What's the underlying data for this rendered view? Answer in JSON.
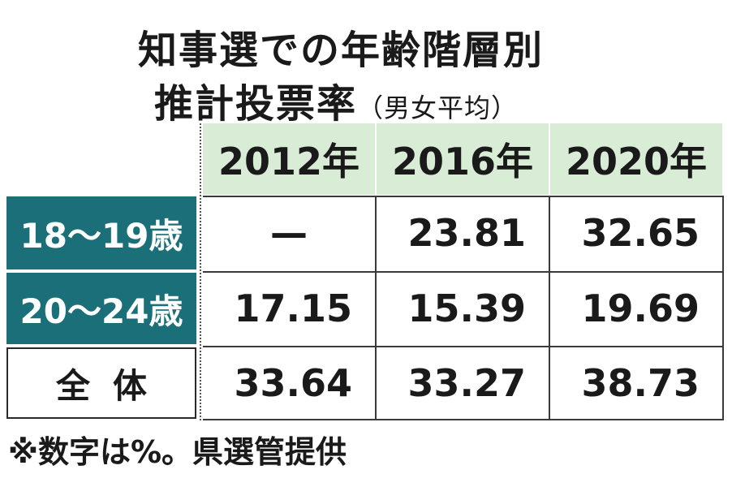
{
  "title": {
    "line1": "知事選での年齢階層別",
    "line2": "推計投票率",
    "line2_sub": "（男女平均）"
  },
  "table": {
    "columns": [
      "2012年",
      "2016年",
      "2020年"
    ],
    "rows": [
      {
        "label": "18〜19歳",
        "values": [
          "—",
          "23.81",
          "32.65"
        ]
      },
      {
        "label": "20〜24歳",
        "values": [
          "17.15",
          "15.39",
          "19.69"
        ]
      },
      {
        "label": "全体",
        "values": [
          "33.64",
          "33.27",
          "38.73"
        ]
      }
    ]
  },
  "note": "※数字は%。県選管提供",
  "colors": {
    "header_bg": "#d9ecd5",
    "row_label_bg": "#1a6f78"
  }
}
